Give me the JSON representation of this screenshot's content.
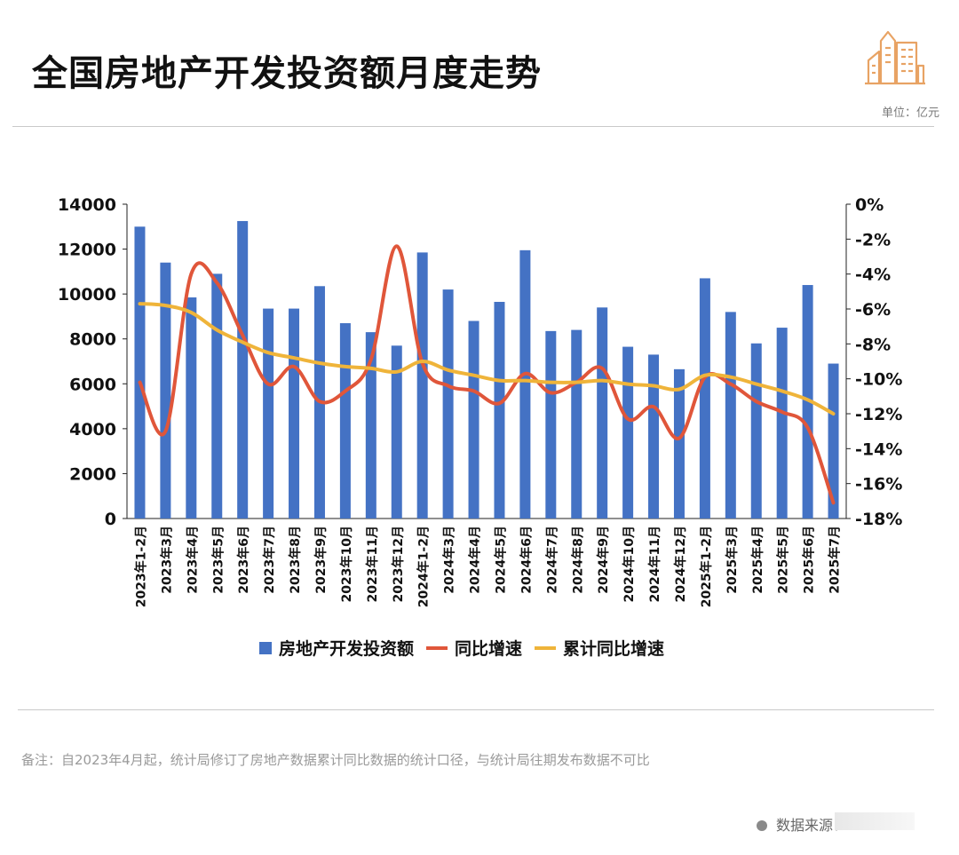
{
  "title": "全国房地产开发投资额月度走势",
  "unit_label": "单位：亿元",
  "note": "备注：自2023年4月起，统计局修订了房地产数据累计同比数据的统计口径，与统计局往期发布数据不可比",
  "source_label": "数据来源：",
  "chart_data": {
    "type": "bar",
    "categories": [
      "2023年1-2月",
      "2023年3月",
      "2023年4月",
      "2023年5月",
      "2023年6月",
      "2023年7月",
      "2023年8月",
      "2023年9月",
      "2023年10月",
      "2023年11月",
      "2023年12月",
      "2024年1-2月",
      "2024年3月",
      "2024年4月",
      "2024年5月",
      "2024年6月",
      "2024年7月",
      "2024年8月",
      "2024年9月",
      "2024年10月",
      "2024年11月",
      "2024年12月",
      "2025年1-2月",
      "2025年3月",
      "2025年4月",
      "2025年5月",
      "2025年6月",
      "2025年7月"
    ],
    "series": [
      {
        "name": "房地产开发投资额",
        "type": "bar",
        "axis": "left",
        "color": "#4472C4",
        "values": [
          13000,
          11400,
          9850,
          10900,
          13250,
          9350,
          9350,
          10350,
          8700,
          8300,
          7700,
          11850,
          10200,
          8800,
          9650,
          11950,
          8350,
          8400,
          9400,
          7650,
          7300,
          6650,
          10700,
          9200,
          7800,
          8500,
          10400,
          6900
        ]
      },
      {
        "name": "同比增速",
        "type": "line",
        "axis": "right",
        "color": "#E0563A",
        "values": [
          -10.2,
          -13.0,
          -4.0,
          -4.5,
          -7.5,
          -10.3,
          -9.3,
          -11.3,
          -10.7,
          -8.9,
          -2.4,
          -9.1,
          -10.4,
          -10.7,
          -11.4,
          -9.7,
          -10.8,
          -10.2,
          -9.4,
          -12.3,
          -11.6,
          -13.4,
          -9.9,
          -10.3,
          -11.3,
          -11.9,
          -12.8,
          -17.1
        ]
      },
      {
        "name": "累计同比增速",
        "type": "line",
        "axis": "right",
        "color": "#EFB43A",
        "values": [
          -5.7,
          -5.8,
          -6.2,
          -7.2,
          -7.9,
          -8.5,
          -8.8,
          -9.1,
          -9.3,
          -9.4,
          -9.6,
          -9.0,
          -9.5,
          -9.8,
          -10.1,
          -10.1,
          -10.2,
          -10.2,
          -10.1,
          -10.3,
          -10.4,
          -10.6,
          -9.8,
          -9.9,
          -10.3,
          -10.7,
          -11.2,
          -12.0
        ]
      }
    ],
    "yleft": {
      "ylim": [
        0,
        14000
      ],
      "ticks": [
        0,
        2000,
        4000,
        6000,
        8000,
        10000,
        12000,
        14000
      ]
    },
    "yright": {
      "ylim": [
        -18,
        0
      ],
      "ticks": [
        0,
        -2,
        -4,
        -6,
        -8,
        -10,
        -12,
        -14,
        -16,
        -18
      ],
      "format": "percent"
    },
    "legend": "bottom",
    "grid": false
  }
}
